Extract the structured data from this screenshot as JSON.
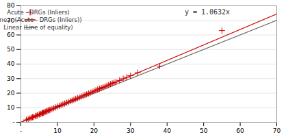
{
  "chart_data": {
    "type": "scatter",
    "annotation": "y = 1.0632x",
    "xlim": [
      0,
      70
    ],
    "ylim": [
      0,
      80
    ],
    "xticks": [
      {
        "value": 0,
        "label": "-"
      },
      10,
      20,
      30,
      40,
      50,
      60,
      70
    ],
    "yticks": [
      {
        "value": 0,
        "label": "-"
      },
      10,
      20,
      30,
      40,
      50,
      60,
      70,
      80
    ],
    "grid": "y",
    "legend": "upper left",
    "series": [
      {
        "name": "Acute - DRGs (Inliers)",
        "type": "scatter",
        "marker": "+",
        "color": "#cc0000",
        "x": [
          1.5,
          2.0,
          2.5,
          3.0,
          3.2,
          3.5,
          4.0,
          4.2,
          4.5,
          5.0,
          5.2,
          5.5,
          5.8,
          6.0,
          6.2,
          6.5,
          6.8,
          7.0,
          7.2,
          7.5,
          7.8,
          8.0,
          8.5,
          9.0,
          9.5,
          10.0,
          10.5,
          11.0,
          11.5,
          12.0,
          12.5,
          13.0,
          13.5,
          14.0,
          14.5,
          15.0,
          15.5,
          16.0,
          16.5,
          17.0,
          17.5,
          18.0,
          18.5,
          19.0,
          19.5,
          20.0,
          20.5,
          21.0,
          21.5,
          22.0,
          22.5,
          23.0,
          23.5,
          24.0,
          24.5,
          25.0,
          25.5,
          26.0,
          27.0,
          28.0,
          29.0,
          30.0,
          32.0,
          38.0,
          55.0
        ],
        "values": [
          1.6,
          2.1,
          2.7,
          3.2,
          3.5,
          3.7,
          4.2,
          4.5,
          4.8,
          5.3,
          5.6,
          5.8,
          6.2,
          6.4,
          6.6,
          7.0,
          7.2,
          7.5,
          7.8,
          8.1,
          8.4,
          8.6,
          9.1,
          9.7,
          10.2,
          10.8,
          11.3,
          11.8,
          12.4,
          12.9,
          13.4,
          13.9,
          14.5,
          15.0,
          15.5,
          16.1,
          16.6,
          17.1,
          17.7,
          18.2,
          18.7,
          19.2,
          19.8,
          20.3,
          20.8,
          21.4,
          21.9,
          22.4,
          23.0,
          23.5,
          24.0,
          24.6,
          25.1,
          25.6,
          26.2,
          26.7,
          27.2,
          27.7,
          28.8,
          29.9,
          30.9,
          32.0,
          34.1,
          38.6,
          63.0
        ]
      },
      {
        "name": "Linear (Acute - DRGs (Inliers))",
        "type": "line",
        "color": "#cc0000",
        "x": [
          0,
          70
        ],
        "values": [
          0,
          74.424
        ]
      },
      {
        "name": "Linear (Line of equality)",
        "type": "line",
        "color": "#666666",
        "x": [
          0,
          70
        ],
        "values": [
          0,
          70
        ]
      }
    ]
  }
}
